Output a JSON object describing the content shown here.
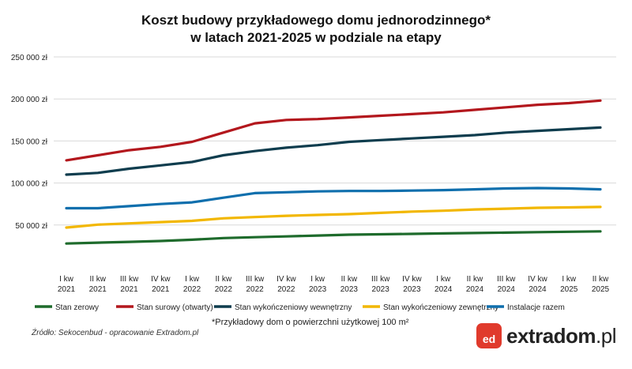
{
  "header": {
    "title_line1": "Koszt budowy przykładowego domu jednorodzinnego*",
    "title_line2": "w latach 2021-2025 w podziale na etapy"
  },
  "footer": {
    "note": "*Przykładowy dom o powierzchni użytkowej 100 m²",
    "source": "Źródło: Sekocenbud - opracowanie Extradom.pl",
    "logo_main": "extradom",
    "logo_suffix": ".pl",
    "logo_badge": "ed"
  },
  "chart_data": {
    "type": "line",
    "ylim": [
      0,
      250000
    ],
    "y_ticks": [
      {
        "value": 50000,
        "label": "50 000 zł"
      },
      {
        "value": 100000,
        "label": "100 000 zł"
      },
      {
        "value": 150000,
        "label": "150 000 zł"
      },
      {
        "value": 200000,
        "label": "200 000 zł"
      },
      {
        "value": 250000,
        "label": "250 000 zł"
      }
    ],
    "grid": true,
    "legend_position": "bottom",
    "categories": [
      [
        "I kw",
        "2021"
      ],
      [
        "II kw",
        "2021"
      ],
      [
        "III kw",
        "2021"
      ],
      [
        "IV kw",
        "2021"
      ],
      [
        "I kw",
        "2022"
      ],
      [
        "II kw",
        "2022"
      ],
      [
        "III kw",
        "2022"
      ],
      [
        "IV kw",
        "2022"
      ],
      [
        "I kw",
        "2023"
      ],
      [
        "II kw",
        "2023"
      ],
      [
        "III kw",
        "2023"
      ],
      [
        "IV kw",
        "2023"
      ],
      [
        "I kw",
        "2024"
      ],
      [
        "II kw",
        "2024"
      ],
      [
        "III kw",
        "2024"
      ],
      [
        "IV kw",
        "2024"
      ],
      [
        "I kw",
        "2025"
      ],
      [
        "II kw",
        "2025"
      ]
    ],
    "series": [
      {
        "name": "Stan zerowy",
        "color": "#1e6b2c",
        "values": [
          28000,
          29000,
          30000,
          31000,
          32500,
          34500,
          35500,
          36500,
          37500,
          38500,
          39000,
          39500,
          40000,
          40500,
          41000,
          41500,
          42000,
          42500
        ]
      },
      {
        "name": "Stan surowy (otwarty)",
        "color": "#b3171d",
        "values": [
          127000,
          133000,
          139000,
          143000,
          149000,
          160000,
          171000,
          175000,
          176000,
          178000,
          180000,
          182000,
          184000,
          187000,
          190000,
          193000,
          195000,
          198000
        ]
      },
      {
        "name": "Stan wykończeniowy wewnętrzny",
        "color": "#0f3d4e",
        "values": [
          110000,
          112000,
          117000,
          121000,
          125000,
          133000,
          138000,
          142000,
          145000,
          149000,
          151000,
          153000,
          155000,
          157000,
          160000,
          162000,
          164000,
          166000
        ]
      },
      {
        "name": "Stan wykończeniowy zewnętrzny",
        "color": "#f2b700",
        "values": [
          47000,
          50500,
          52000,
          53500,
          55000,
          58000,
          59500,
          61000,
          62000,
          63000,
          64500,
          66000,
          67000,
          68500,
          69500,
          70500,
          71000,
          71500
        ]
      },
      {
        "name": "Instalacje razem",
        "color": "#0f6fad",
        "values": [
          70000,
          70000,
          72500,
          75000,
          77000,
          82500,
          88000,
          89000,
          90000,
          90500,
          90500,
          91000,
          91500,
          92500,
          93500,
          94000,
          93500,
          92500
        ]
      }
    ]
  }
}
